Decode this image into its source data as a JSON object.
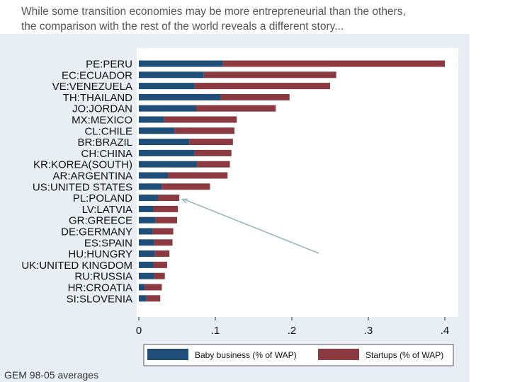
{
  "slide": {
    "title_line1": "While some transition economies may be more entrepreneurial than the others,",
    "title_line2": "the comparison with the rest of the world reveals a different story...",
    "footer": "GEM 98-05 averages"
  },
  "colors": {
    "baby_business": "#1f4e79",
    "startups": "#8b3a3f",
    "panel_bg": "#e8eef4",
    "plot_bg": "#ffffff",
    "arrow": "#9ab8c4"
  },
  "chart_data": {
    "type": "bar",
    "orientation": "horizontal",
    "stacked": true,
    "categories": [
      "PE:PERU",
      "EC:ECUADOR",
      "VE:VENEZUELA",
      "TH:THAILAND",
      "JO:JORDAN",
      "MX:MEXICO",
      "CL:CHILE",
      "BR:BRAZIL",
      "CH:CHINA",
      "KR:KOREA(SOUTH)",
      "AR:ARGENTINA",
      "US:UNITED STATES",
      "PL:POLAND",
      "LV:LATVIA",
      "GR:GREECE",
      "DE:GERMANY",
      "ES:SPAIN",
      "HU:HUNGRY",
      "UK:UNITED KINGDOM",
      "RU:RUSSIA",
      "HR:CROATIA",
      "SI:SLOVENIA"
    ],
    "series": [
      {
        "name": "Baby business (% of WAP)",
        "values": [
          0.11,
          0.085,
          0.073,
          0.107,
          0.075,
          0.033,
          0.047,
          0.066,
          0.073,
          0.076,
          0.038,
          0.03,
          0.025,
          0.019,
          0.022,
          0.018,
          0.02,
          0.021,
          0.019,
          0.02,
          0.008,
          0.01
        ]
      },
      {
        "name": "Startups (% of WAP)",
        "values": [
          0.29,
          0.173,
          0.177,
          0.09,
          0.104,
          0.095,
          0.078,
          0.057,
          0.048,
          0.043,
          0.078,
          0.063,
          0.028,
          0.032,
          0.028,
          0.027,
          0.024,
          0.019,
          0.018,
          0.014,
          0.022,
          0.018
        ]
      }
    ],
    "xlim": [
      0,
      0.41
    ],
    "x_ticks": [
      0,
      0.1,
      0.2,
      0.3,
      0.4
    ],
    "x_tick_labels": [
      "0",
      ".1",
      ".2",
      ".3",
      ".4"
    ],
    "legend_position": "bottom",
    "grid": false,
    "annotation": {
      "type": "arrow",
      "points_to": "PL:POLAND"
    }
  }
}
